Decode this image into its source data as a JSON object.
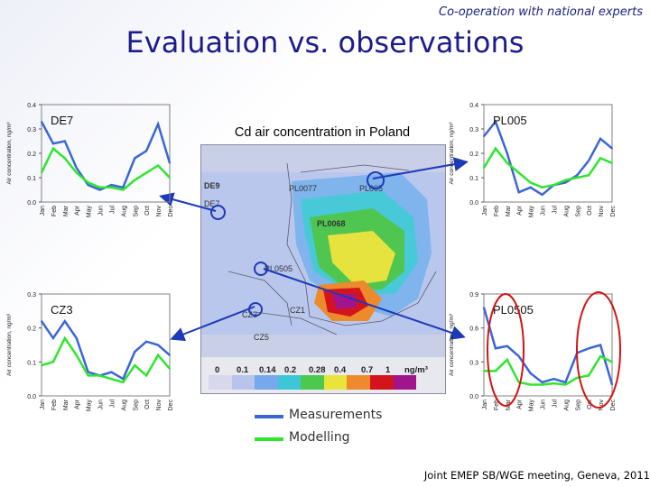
{
  "header": {
    "tagline": "Co-operation with national experts",
    "title": "Evaluation vs. observations"
  },
  "map": {
    "title": "Cd air concentration in Poland",
    "scale_ticks": [
      "0",
      "0.1",
      "0.14",
      "0.2",
      "0.28",
      "0.4",
      "0.7",
      "1"
    ],
    "scale_unit": "ng/m³",
    "scale_colors": [
      "#d8d8ec",
      "#b7c4ec",
      "#78a8ec",
      "#3cc6d8",
      "#4cc84c",
      "#e8e43c",
      "#ec8a2c",
      "#d4141c",
      "#a0148c"
    ],
    "stations": [
      "DE9",
      "PL0077",
      "PL005",
      "PL0068",
      "PL0505",
      "CZ3",
      "CZ1",
      "CZ5",
      "DE7"
    ]
  },
  "legend": {
    "measurements": "Measurements",
    "modelling": "Modelling",
    "measurements_color": "#3a66d6",
    "modelling_color": "#2ee62e"
  },
  "footer": {
    "text": "Joint EMEP SB/WGE meeting, Geneva, 2011"
  },
  "chart_data": [
    {
      "type": "line",
      "title": "DE7",
      "ylabel": "Air concentration, ng/m³",
      "ylim": [
        0,
        0.4
      ],
      "yticks": [
        "0.0",
        "0.1",
        "0.2",
        "0.3",
        "0.4"
      ],
      "categories": [
        "Jan",
        "Feb",
        "Mar",
        "Apr",
        "May",
        "Jun",
        "Jul",
        "Aug",
        "Sep",
        "Oct",
        "Nov",
        "Dec"
      ],
      "series": [
        {
          "name": "Measurements",
          "values": [
            0.33,
            0.24,
            0.25,
            0.14,
            0.07,
            0.05,
            0.07,
            0.06,
            0.18,
            0.21,
            0.32,
            0.16
          ]
        },
        {
          "name": "Modelling",
          "values": [
            0.12,
            0.22,
            0.18,
            0.12,
            0.08,
            0.06,
            0.06,
            0.05,
            0.09,
            0.12,
            0.15,
            0.1
          ]
        }
      ]
    },
    {
      "type": "line",
      "title": "PL005",
      "ylabel": "Air concentration, ng/m³",
      "ylim": [
        0,
        0.4
      ],
      "yticks": [
        "0.0",
        "0.1",
        "0.2",
        "0.3",
        "0.4"
      ],
      "categories": [
        "Jan",
        "Feb",
        "Mar",
        "Apr",
        "May",
        "Jun",
        "Jul",
        "Aug",
        "Sep",
        "Oct",
        "Nov",
        "Dec"
      ],
      "series": [
        {
          "name": "Measurements",
          "values": [
            0.27,
            0.33,
            0.2,
            0.04,
            0.06,
            0.03,
            0.07,
            0.08,
            0.11,
            0.17,
            0.26,
            0.22
          ]
        },
        {
          "name": "Modelling",
          "values": [
            0.14,
            0.22,
            0.16,
            0.12,
            0.08,
            0.06,
            0.07,
            0.09,
            0.1,
            0.11,
            0.18,
            0.16
          ]
        }
      ]
    },
    {
      "type": "line",
      "title": "CZ3",
      "ylabel": "Air concentration, ng/m³",
      "ylim": [
        0,
        0.3
      ],
      "yticks": [
        "0.0",
        "0.1",
        "0.2",
        "0.3"
      ],
      "categories": [
        "Jan",
        "Feb",
        "Mar",
        "Apr",
        "May",
        "Jun",
        "Jul",
        "Aug",
        "Sep",
        "Oct",
        "Nov",
        "Dec"
      ],
      "series": [
        {
          "name": "Measurements",
          "values": [
            0.22,
            0.17,
            0.22,
            0.17,
            0.07,
            0.06,
            0.07,
            0.05,
            0.13,
            0.16,
            0.15,
            0.12
          ]
        },
        {
          "name": "Modelling",
          "values": [
            0.09,
            0.1,
            0.17,
            0.12,
            0.06,
            0.06,
            0.05,
            0.04,
            0.09,
            0.06,
            0.12,
            0.08
          ]
        }
      ]
    },
    {
      "type": "line",
      "title": "PL0505",
      "ylabel": "Air concentration, ng/m³",
      "ylim": [
        0,
        0.9
      ],
      "yticks": [
        "0.0",
        "0.3",
        "0.6",
        "0.9"
      ],
      "categories": [
        "Jan",
        "Feb",
        "Mar",
        "Apr",
        "May",
        "Jun",
        "Jul",
        "Aug",
        "Sep",
        "Oct",
        "Nov",
        "Dec"
      ],
      "series": [
        {
          "name": "Measurements",
          "values": [
            0.78,
            0.42,
            0.44,
            0.35,
            0.2,
            0.12,
            0.15,
            0.12,
            0.38,
            0.42,
            0.45,
            0.1
          ]
        },
        {
          "name": "Modelling",
          "values": [
            0.22,
            0.22,
            0.32,
            0.12,
            0.1,
            0.1,
            0.11,
            0.1,
            0.16,
            0.18,
            0.35,
            0.3
          ]
        }
      ]
    }
  ]
}
